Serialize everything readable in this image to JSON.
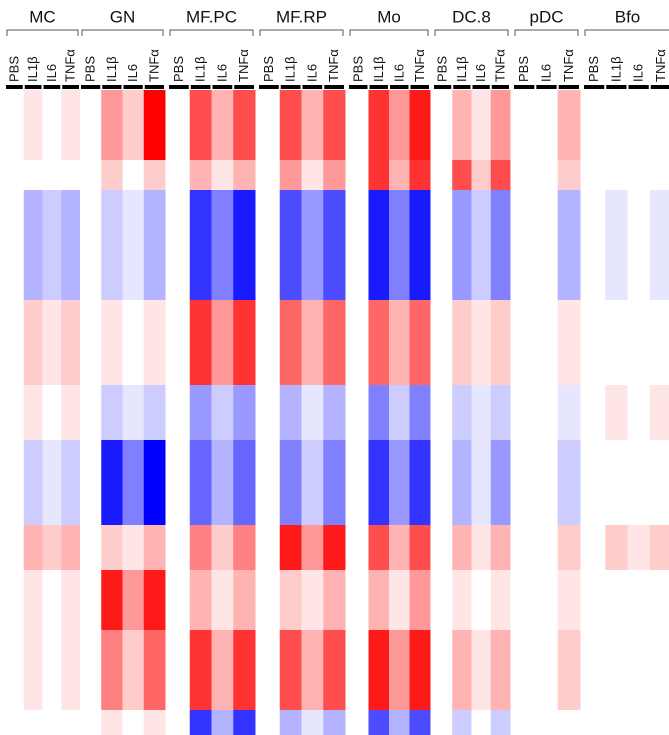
{
  "chart_data": {
    "type": "heatmap",
    "groups": [
      {
        "name": "MC",
        "columns": [
          "PBS",
          "IL1β",
          "IL6",
          "TNFα"
        ]
      },
      {
        "name": "GN",
        "columns": [
          "PBS",
          "IL1β",
          "IL6",
          "TNFα"
        ]
      },
      {
        "name": "MF.PC",
        "columns": [
          "PBS",
          "IL1β",
          "IL6",
          "TNFα"
        ]
      },
      {
        "name": "MF.RP",
        "columns": [
          "PBS",
          "IL1β",
          "IL6",
          "TNFα"
        ]
      },
      {
        "name": "Mo",
        "columns": [
          "PBS",
          "IL1β",
          "IL6",
          "TNFα"
        ]
      },
      {
        "name": "DC.8",
        "columns": [
          "PBS",
          "IL1β",
          "IL6",
          "TNFα"
        ]
      },
      {
        "name": "pDC",
        "columns": [
          "PBS",
          "IL6",
          "TNFα"
        ]
      },
      {
        "name": "Bfo",
        "columns": [
          "PBS",
          "IL1β",
          "IL6",
          "TNFα"
        ]
      }
    ],
    "zlim": [
      -1,
      1
    ],
    "colors": [
      "#0000ff",
      "#ffffff",
      "#ff0000"
    ],
    "values": [
      [
        0,
        0.1,
        0,
        0.1,
        0,
        0.4,
        0.2,
        1,
        0,
        0.7,
        0.3,
        0.7,
        0,
        0.7,
        0.3,
        0.7,
        0,
        0.8,
        0.4,
        0.9,
        0,
        0.3,
        0.1,
        0.4,
        0,
        0,
        0.3,
        0,
        0,
        0,
        0
      ],
      [
        0,
        0,
        0,
        0,
        0,
        0.2,
        0,
        0.2,
        0,
        0.3,
        0.1,
        0.3,
        0,
        0.4,
        0.1,
        0.4,
        0,
        0.8,
        0.3,
        0.8,
        0,
        0.7,
        0.2,
        0.7,
        0,
        0,
        0.2,
        0,
        0,
        0,
        0
      ],
      [
        0,
        -0.3,
        -0.2,
        -0.3,
        0,
        -0.2,
        -0.1,
        -0.3,
        0,
        -0.8,
        -0.5,
        -0.9,
        0,
        -0.7,
        -0.4,
        -0.7,
        0,
        -0.9,
        -0.5,
        -0.9,
        0,
        -0.4,
        -0.2,
        -0.5,
        0,
        0,
        -0.3,
        0,
        -0.1,
        0,
        -0.1
      ],
      [
        0,
        0.2,
        0.1,
        0.2,
        0,
        0.1,
        0,
        0.1,
        0,
        0.8,
        0.4,
        0.8,
        0,
        0.6,
        0.3,
        0.6,
        0,
        0.6,
        0.3,
        0.6,
        0,
        0.2,
        0.1,
        0.2,
        0,
        0,
        0.1,
        0,
        0,
        0,
        0
      ],
      [
        0,
        0.1,
        0,
        0.1,
        0,
        -0.2,
        -0.1,
        -0.2,
        0,
        -0.4,
        -0.2,
        -0.4,
        0,
        -0.3,
        -0.1,
        -0.3,
        0,
        -0.5,
        -0.2,
        -0.5,
        0,
        -0.2,
        -0.1,
        -0.2,
        0,
        0,
        -0.1,
        0,
        0.1,
        0,
        0.1
      ],
      [
        0,
        -0.2,
        -0.1,
        -0.2,
        0,
        -0.9,
        -0.5,
        -1,
        0,
        -0.6,
        -0.3,
        -0.6,
        0,
        -0.5,
        -0.2,
        -0.5,
        0,
        -0.8,
        -0.4,
        -0.8,
        0,
        -0.3,
        -0.1,
        -0.4,
        0,
        0,
        -0.2,
        0,
        0,
        0,
        0
      ],
      [
        0,
        0.3,
        0.2,
        0.3,
        0,
        0.2,
        0.1,
        0.3,
        0,
        0.5,
        0.2,
        0.5,
        0,
        0.9,
        0.4,
        0.9,
        0,
        0.7,
        0.3,
        0.7,
        0,
        0.3,
        0.1,
        0.3,
        0,
        0,
        0.2,
        0,
        0.2,
        0.1,
        0.2
      ],
      [
        0,
        0.1,
        0,
        0.1,
        0,
        0.9,
        0.4,
        0.9,
        0,
        0.3,
        0.1,
        0.3,
        0,
        0.2,
        0.1,
        0.3,
        0,
        0.3,
        0.1,
        0.4,
        0,
        0.1,
        0,
        0.1,
        0,
        0,
        0.1,
        0,
        0,
        0,
        0
      ],
      [
        0,
        0.1,
        0,
        0.1,
        0,
        0.5,
        0.2,
        0.6,
        0,
        0.8,
        0.3,
        0.8,
        0,
        0.7,
        0.3,
        0.7,
        0,
        0.9,
        0.4,
        0.9,
        0,
        0.3,
        0.1,
        0.3,
        0,
        0,
        0.2,
        0,
        0,
        0,
        0
      ],
      [
        0,
        0,
        0,
        0,
        0,
        0.1,
        0,
        0.1,
        0,
        -0.8,
        -0.3,
        -0.8,
        0,
        -0.3,
        -0.1,
        -0.3,
        0,
        -0.7,
        -0.3,
        -0.7,
        0,
        -0.2,
        0,
        -0.2,
        0,
        0,
        0,
        0,
        0,
        0,
        0
      ]
    ]
  }
}
